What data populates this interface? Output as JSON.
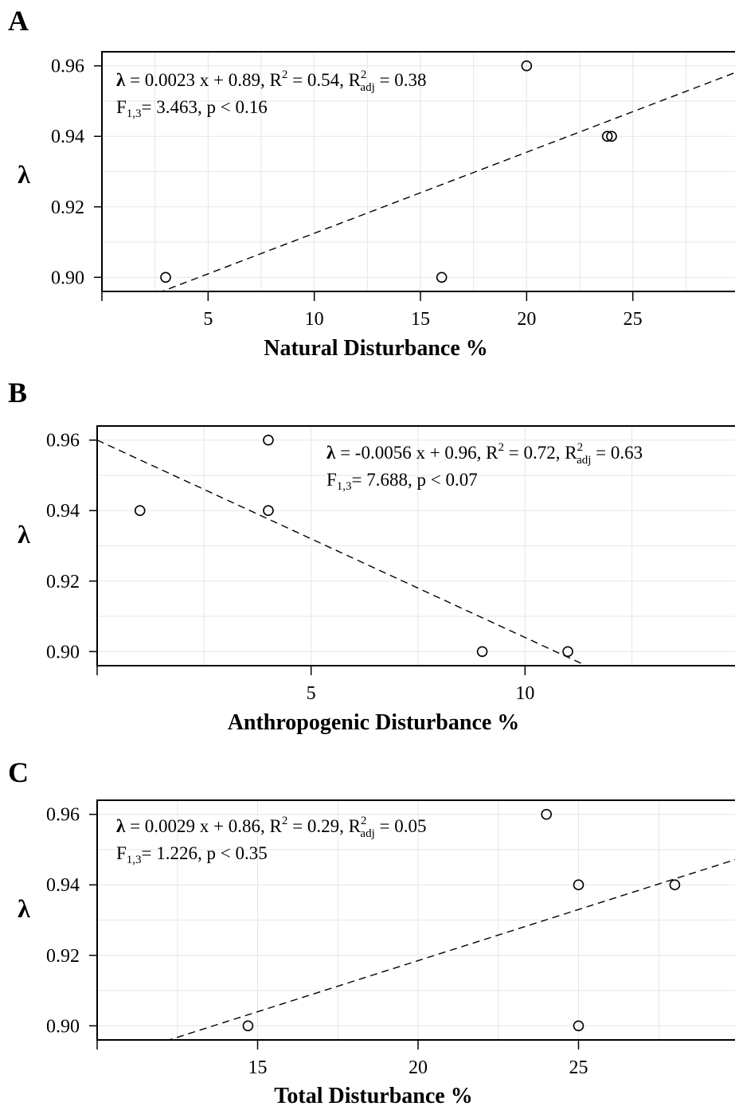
{
  "chart_data": [
    {
      "type": "scatter",
      "panel": "A",
      "xlabel": "Natural Disturbance %",
      "ylabel": "λ",
      "xlim": [
        0,
        30
      ],
      "ylim": [
        0.896,
        0.964
      ],
      "xticks": [
        5,
        10,
        15,
        20,
        25
      ],
      "yticks": [
        0.9,
        0.92,
        0.94,
        0.96
      ],
      "ytick_labels": [
        "0.90",
        "0.92",
        "0.94",
        "0.96"
      ],
      "grid": true,
      "points": [
        {
          "x": 3,
          "y": 0.9
        },
        {
          "x": 16,
          "y": 0.9
        },
        {
          "x": 20,
          "y": 0.96
        },
        {
          "x": 23.8,
          "y": 0.94
        },
        {
          "x": 24,
          "y": 0.94
        }
      ],
      "fit": {
        "slope": 0.0023,
        "intercept": 0.8895,
        "style": "dashed"
      },
      "annotation": {
        "line1": {
          "lambda": "λ",
          "eq": " = 0.0023 x + 0.89, R",
          "sup": "2",
          "mid": " = 0.54, R",
          "sup2": "2",
          "sub": "adj",
          "tail": " = 0.38"
        },
        "line2": {
          "f": "F",
          "sub": "1,3",
          "tail": "= 3.463,  p < 0.16"
        }
      }
    },
    {
      "type": "scatter",
      "panel": "B",
      "xlabel": "Anthropogenic Disturbance %",
      "ylabel": "λ",
      "xlim": [
        0,
        15
      ],
      "ylim": [
        0.896,
        0.964
      ],
      "xticks": [
        5,
        10
      ],
      "yticks": [
        0.9,
        0.92,
        0.94,
        0.96
      ],
      "ytick_labels": [
        "0.90",
        "0.92",
        "0.94",
        "0.96"
      ],
      "grid": true,
      "points": [
        {
          "x": 1,
          "y": 0.94
        },
        {
          "x": 4,
          "y": 0.96
        },
        {
          "x": 4,
          "y": 0.94
        },
        {
          "x": 9,
          "y": 0.9
        },
        {
          "x": 11,
          "y": 0.9
        }
      ],
      "fit": {
        "slope": -0.0056,
        "intercept": 0.96,
        "style": "dashed"
      },
      "annotation": {
        "line1": {
          "lambda": "λ",
          "eq": " = -0.0056 x + 0.96, R",
          "sup": "2",
          "mid": " = 0.72, R",
          "sup2": "2",
          "sub": "adj",
          "tail": " = 0.63"
        },
        "line2": {
          "f": "F",
          "sub": "1,3",
          "tail": "= 7.688,  p < 0.07"
        }
      }
    },
    {
      "type": "scatter",
      "panel": "C",
      "xlabel": "Total Disturbance %",
      "ylabel": "λ",
      "xlim": [
        10,
        30
      ],
      "ylim": [
        0.896,
        0.964
      ],
      "xticks": [
        15,
        20,
        25
      ],
      "yticks": [
        0.9,
        0.92,
        0.94,
        0.96
      ],
      "ytick_labels": [
        "0.90",
        "0.92",
        "0.94",
        "0.96"
      ],
      "grid": true,
      "points": [
        {
          "x": 14.7,
          "y": 0.9
        },
        {
          "x": 24,
          "y": 0.96
        },
        {
          "x": 25,
          "y": 0.94
        },
        {
          "x": 25,
          "y": 0.9
        },
        {
          "x": 28,
          "y": 0.94
        }
      ],
      "fit": {
        "slope": 0.0029,
        "intercept": 0.8605,
        "style": "dashed"
      },
      "annotation": {
        "line1": {
          "lambda": "λ",
          "eq": " = 0.0029 x + 0.86, R",
          "sup": "2",
          "mid": " = 0.29, R",
          "sup2": "2",
          "sub": "adj",
          "tail": " = 0.05"
        },
        "line2": {
          "f": "F",
          "sub": "1,3",
          "tail": "= 1.226,  p < 0.35"
        }
      }
    }
  ]
}
